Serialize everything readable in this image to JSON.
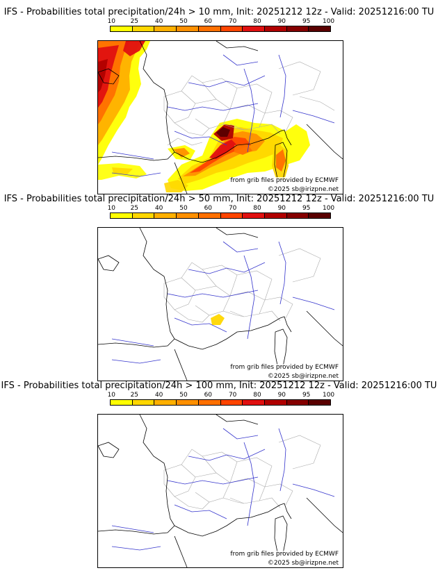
{
  "colorbar": {
    "labels": [
      "10",
      "25",
      "40",
      "50",
      "60",
      "70",
      "80",
      "90",
      "95",
      "100"
    ],
    "colors": [
      "#ffff00",
      "#ffd700",
      "#ffb000",
      "#ff9000",
      "#ff7000",
      "#ff4500",
      "#e01010",
      "#b00000",
      "#850000",
      "#5a0000"
    ]
  },
  "colors": {
    "coast": "#000000",
    "rivers": "#3333cc",
    "borders": "#aaaaaa"
  },
  "panels": [
    {
      "id": "gt10",
      "title": "IFS - Probabilities total precipitation/24h > 10 mm, Init: 20251212 12z - Valid: 20251216:00 TU",
      "credit_source": "from grib files provided by ECMWF",
      "credit_copyright": "©2025 sb@irizpne.net"
    },
    {
      "id": "gt50",
      "title": "IFS - Probabilities total precipitation/24h > 50 mm, Init: 20251212 12z - Valid: 20251216:00 TU",
      "credit_source": "from grib files provided by ECMWF",
      "credit_copyright": "©2025 sb@irizpne.net"
    },
    {
      "id": "gt100",
      "title": "IFS - Probabilities total precipitation/24h > 100 mm, Init: 20251212 12z - Valid: 20251216:00 TU",
      "credit_source": "from grib files provided by ECMWF",
      "credit_copyright": "©2025 sb@irizpne.net"
    }
  ]
}
